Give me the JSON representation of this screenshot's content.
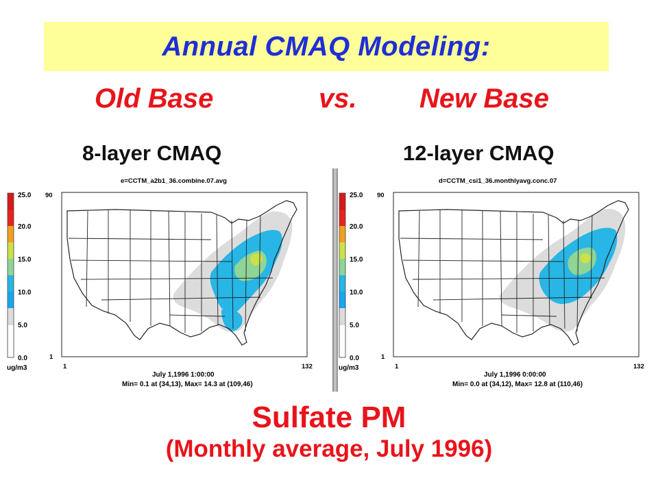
{
  "header": {
    "title": "Annual CMAQ Modeling:",
    "old_base": "Old Base",
    "vs": "vs.",
    "new_base": "New Base"
  },
  "maps": [
    {
      "layer_label": "8-layer CMAQ",
      "file": "e=CCTM_a2b1_36.combine.07.avg",
      "date": "July 1,1996  1:00:00",
      "minmax": "Min=   0.1 at (34,13), Max=   14.3 at (109,46)",
      "y_top": "90",
      "y_bottom": "1",
      "x_left": "1",
      "x_right": "132"
    },
    {
      "layer_label": "12-layer CMAQ",
      "file": "d=CCTM_csi1_36.monthlyavg.conc.07",
      "date": "July 1,1996  0:00:00",
      "minmax": "Min=   0.0 at (34,12), Max=   12.8 at (110,46)",
      "y_top": "90",
      "y_bottom": "1",
      "x_left": "1",
      "x_right": "132"
    }
  ],
  "legend": {
    "ticks": [
      "25.0",
      "20.0",
      "15.0",
      "10.0",
      "5.0",
      "0.0"
    ],
    "unit": "ug/m3",
    "colors": [
      "#d7191c",
      "#e8231e",
      "#f0a020",
      "#cce04a",
      "#8fd596",
      "#27b6e6",
      "#17a7ee",
      "#dcdcdc",
      "#ffffff"
    ]
  },
  "footer": {
    "title": "Sulfate PM",
    "subtitle": "(Monthly average, July 1996)"
  },
  "colors": {
    "title_blue": "#1f2ed6",
    "accent_red": "#e8141b",
    "title_band": "#ffff99"
  }
}
